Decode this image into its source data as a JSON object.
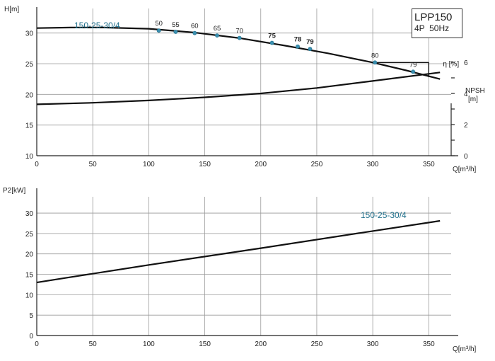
{
  "title_box": {
    "model": "LPP150",
    "spec": "4P  50Hz"
  },
  "chart_data": [
    {
      "type": "line",
      "panel": "head",
      "xlabel": "Q[m³/h]",
      "ylabel": "H[m]",
      "ylabel_right": "NPSH [m]",
      "xlim": [
        0,
        370
      ],
      "ylim": [
        10,
        34
      ],
      "ylim_right": [
        0,
        8
      ],
      "x_ticks": [
        0,
        50,
        100,
        150,
        200,
        250,
        300,
        350
      ],
      "y_ticks": [
        10,
        15,
        20,
        25,
        30
      ],
      "y_ticks_right": [
        0,
        2,
        4,
        6
      ],
      "grid": true,
      "series": [
        {
          "name": "150-25-30/4",
          "x": [
            0,
            30,
            60,
            100,
            140,
            180,
            220,
            260,
            300,
            330,
            360
          ],
          "values": [
            30.8,
            30.9,
            30.9,
            30.7,
            30.1,
            29.2,
            28.0,
            26.7,
            25.2,
            23.9,
            22.5
          ]
        },
        {
          "name": "NPSH",
          "axis": "right",
          "x": [
            0,
            50,
            100,
            150,
            200,
            250,
            300,
            360
          ],
          "values": [
            3.3,
            3.4,
            3.55,
            3.75,
            4.0,
            4.35,
            4.8,
            5.35
          ]
        }
      ],
      "efficiency_points": [
        {
          "label": "50",
          "q": 109,
          "h": 30.4
        },
        {
          "label": "55",
          "q": 124,
          "h": 30.2
        },
        {
          "label": "60",
          "q": 141,
          "h": 30.0
        },
        {
          "label": "65",
          "q": 161,
          "h": 29.6
        },
        {
          "label": "70",
          "q": 181,
          "h": 29.2
        },
        {
          "label": "75",
          "q": 210,
          "h": 28.4
        },
        {
          "label": "78",
          "q": 233,
          "h": 27.8
        },
        {
          "label": "79",
          "q": 244,
          "h": 27.4
        },
        {
          "label": "80",
          "q": 302,
          "h": 25.2
        },
        {
          "label": "79",
          "q": 336,
          "h": 23.7
        }
      ],
      "efficiency_label": "η [%]"
    },
    {
      "type": "line",
      "panel": "power",
      "xlabel": "Q[m³/h]",
      "ylabel": "P2[kW]",
      "xlim": [
        0,
        370
      ],
      "ylim": [
        0,
        34
      ],
      "x_ticks": [
        0,
        50,
        100,
        150,
        200,
        250,
        300,
        350
      ],
      "y_ticks": [
        0,
        5,
        10,
        15,
        20,
        25,
        30
      ],
      "grid": true,
      "series": [
        {
          "name": "150-25-30/4",
          "x": [
            0,
            30,
            100,
            200,
            300,
            360
          ],
          "values": [
            13.0,
            14.3,
            17.3,
            21.4,
            25.6,
            28.1
          ]
        }
      ]
    }
  ]
}
